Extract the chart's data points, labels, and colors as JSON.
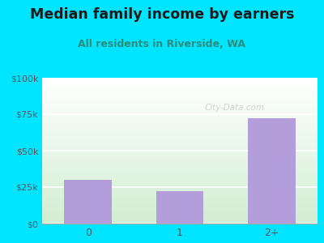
{
  "title": "Median family income by earners",
  "subtitle": "All residents in Riverside, WA",
  "categories": [
    "0",
    "1",
    "2+"
  ],
  "values": [
    30000,
    22000,
    72000
  ],
  "bar_color": "#b39ddb",
  "title_color": "#1a1a1a",
  "subtitle_color": "#2e8b7a",
  "bg_color": "#00e5ff",
  "yticks": [
    0,
    25000,
    50000,
    75000,
    100000
  ],
  "ytick_labels": [
    "$0",
    "$25k",
    "$50k",
    "$75k",
    "$100k"
  ],
  "ylim": [
    0,
    100000
  ],
  "watermark": "City-Data.com",
  "title_fontsize": 12.5,
  "subtitle_fontsize": 9,
  "tick_color": "#555555"
}
